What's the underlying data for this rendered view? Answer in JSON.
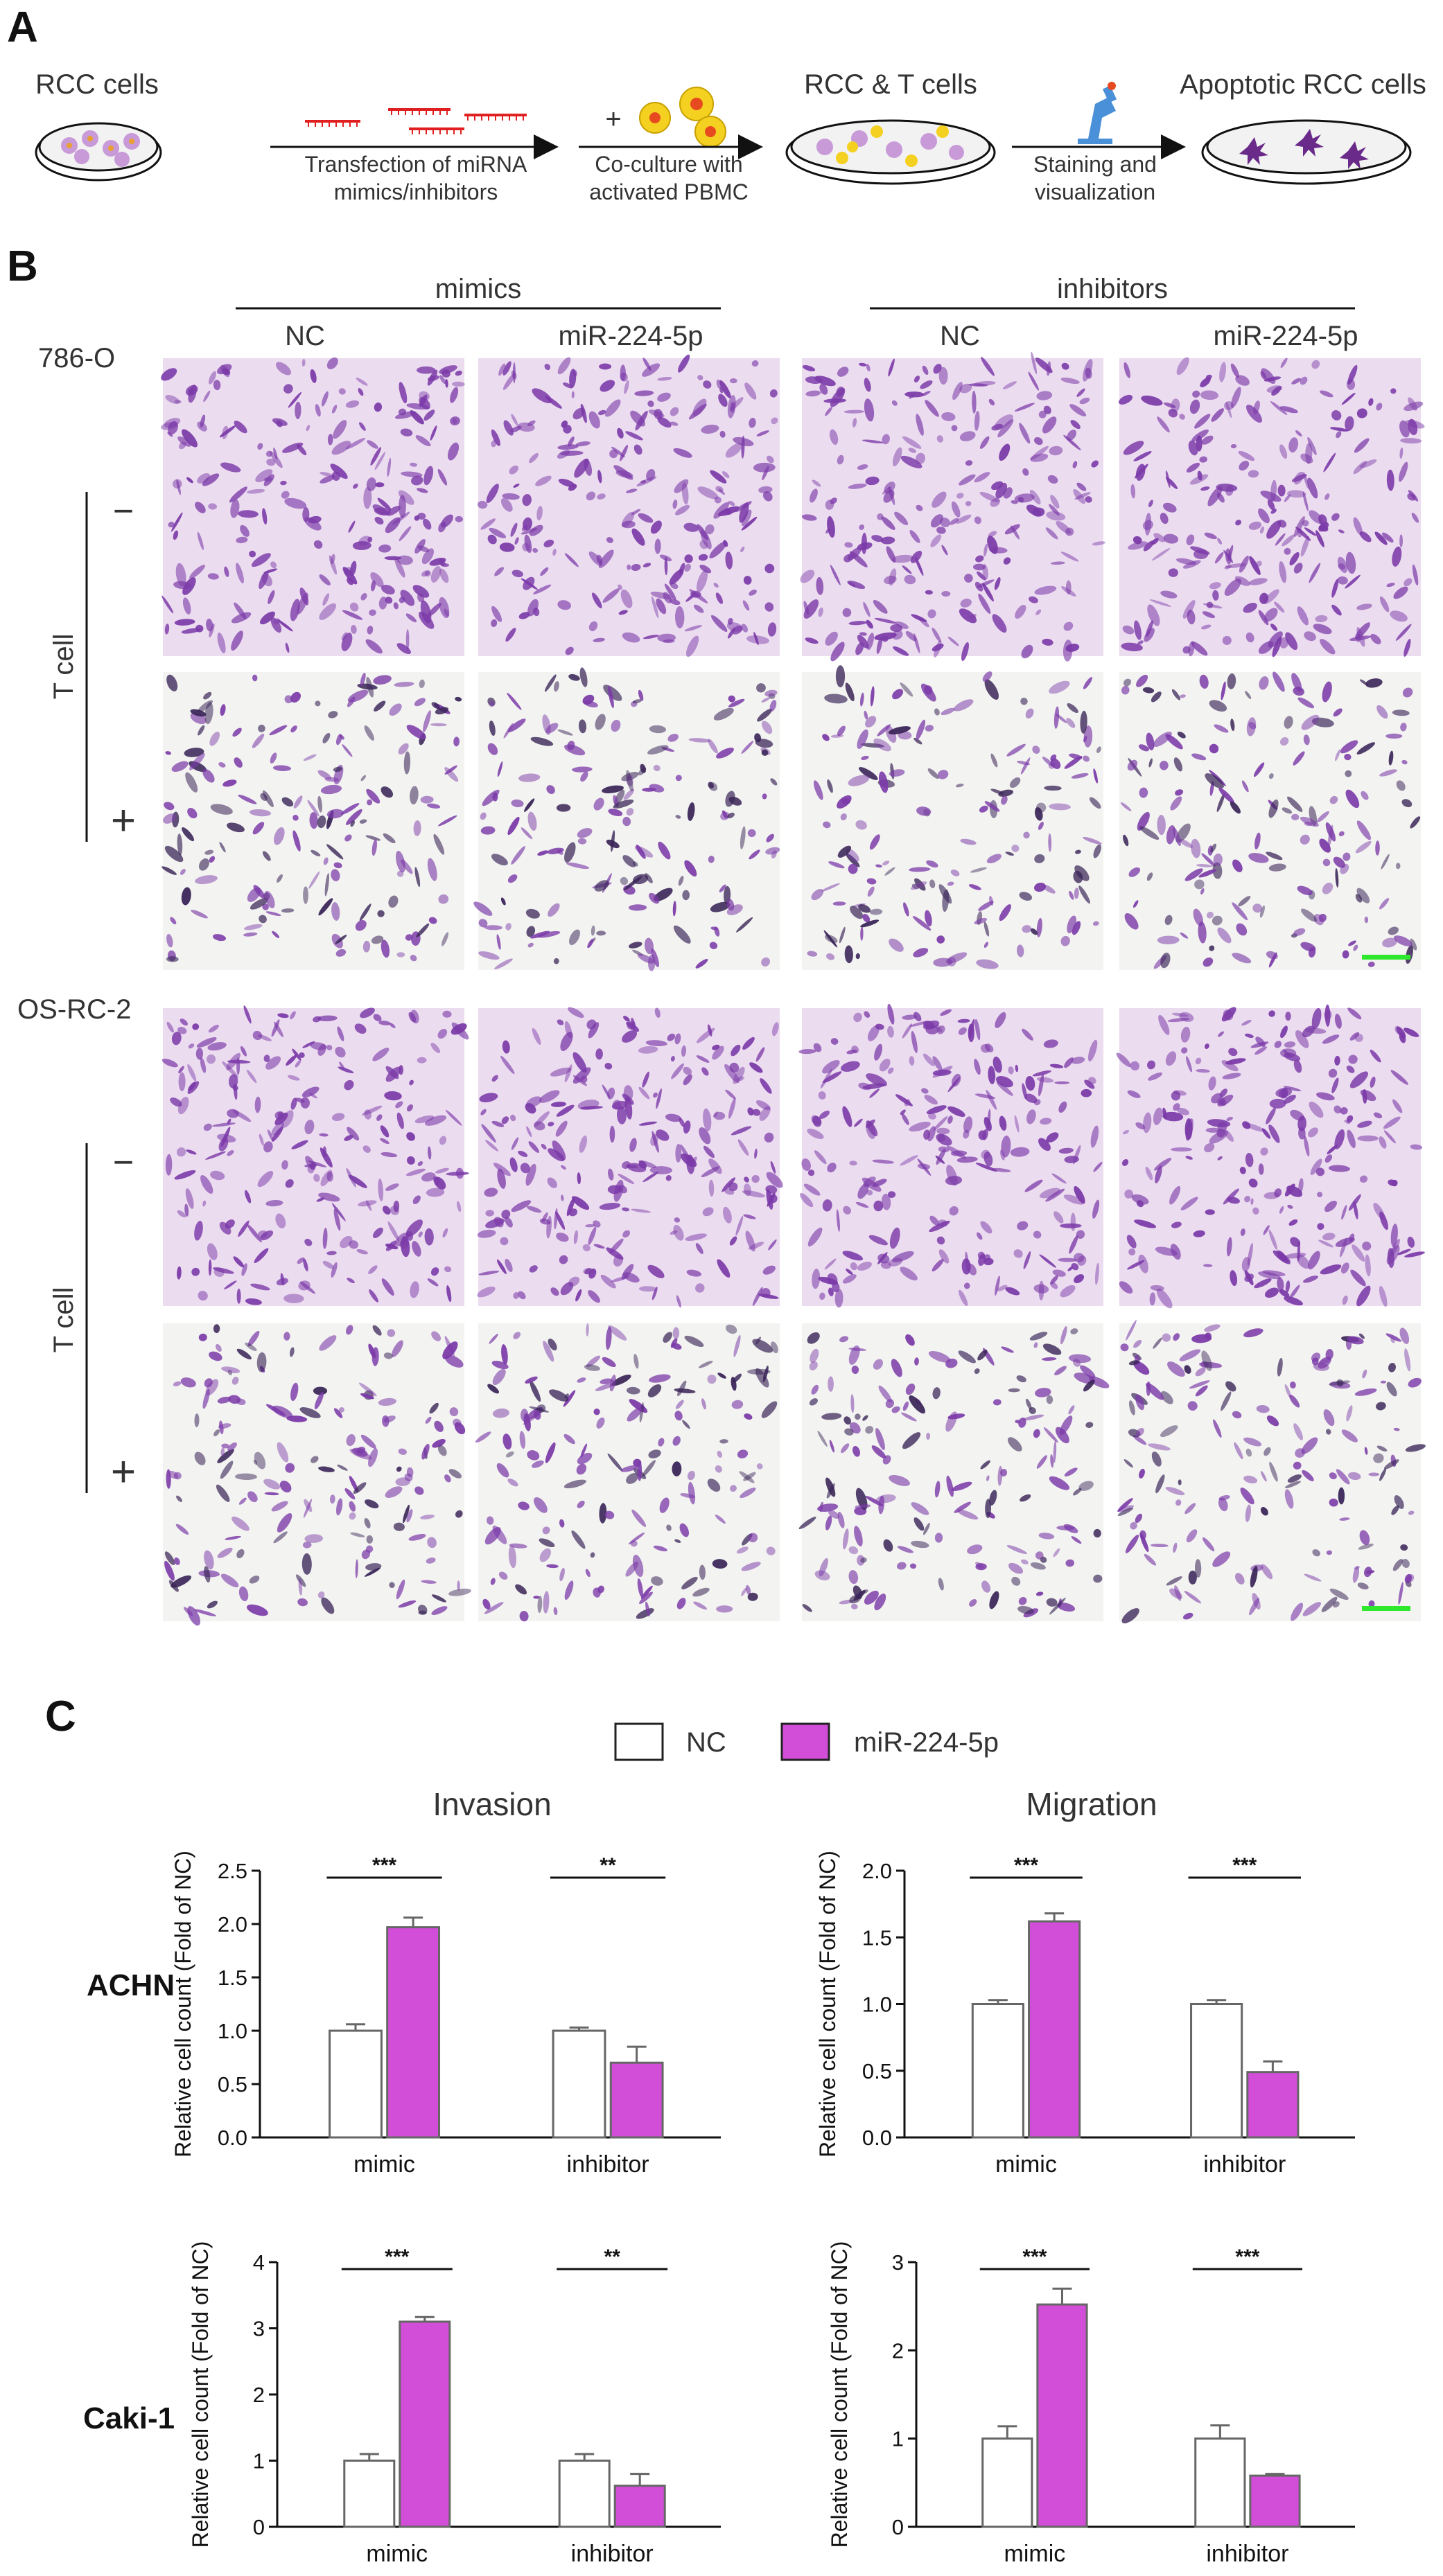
{
  "panels": {
    "a": "A",
    "b": "B",
    "c": "C"
  },
  "schematic": {
    "rcc_cells": "RCC cells",
    "step1_line1": "Transfection of miRNA",
    "step1_line2": "mimics/inhibitors",
    "plus": "+",
    "step2_line1": "Co-culture with",
    "step2_line2": "activated PBMC",
    "rcc_t_cells": "RCC & T cells",
    "step3_line1": "Staining and",
    "step3_line2": "visualization",
    "apoptotic": "Apoptotic RCC cells"
  },
  "micrographs": {
    "group_mimics": "mimics",
    "group_inhibitors": "inhibitors",
    "col_nc_1": "NC",
    "col_mir_1": "miR-224-5p",
    "col_nc_2": "NC",
    "col_mir_2": "miR-224-5p",
    "cell_line_1": "786-O",
    "cell_line_2": "OS-RC-2",
    "t_cell_label": "T cell",
    "minus": "−",
    "plus": "+",
    "stain_color": "#7b3aa8",
    "scale_bar_color": "#2ee82e"
  },
  "legend": {
    "nc": "NC",
    "mir": "miR-224-5p",
    "nc_color": "#ffffff",
    "mir_color": "#d24ed8"
  },
  "column_titles": {
    "invasion": "Invasion",
    "migration": "Migration"
  },
  "row_titles": {
    "achn": "ACHN",
    "caki": "Caki-1"
  },
  "chart_data": [
    {
      "type": "bar",
      "cell_line": "ACHN",
      "assay": "Invasion",
      "categories": [
        "mimic",
        "inhibitor"
      ],
      "series": [
        {
          "name": "NC",
          "values": [
            1.0,
            1.0
          ],
          "errors": [
            0.06,
            0.03
          ]
        },
        {
          "name": "miR-224-5p",
          "values": [
            1.97,
            0.7
          ],
          "errors": [
            0.09,
            0.15
          ]
        }
      ],
      "ylabel": "Relative cell count (Fold of NC)",
      "ylim": [
        0,
        2.5
      ],
      "yticks": [
        "0.0",
        "0.5",
        "1.0",
        "1.5",
        "2.0",
        "2.5"
      ],
      "significance": [
        "***",
        "**"
      ]
    },
    {
      "type": "bar",
      "cell_line": "ACHN",
      "assay": "Migration",
      "categories": [
        "mimic",
        "inhibitor"
      ],
      "series": [
        {
          "name": "NC",
          "values": [
            1.0,
            1.0
          ],
          "errors": [
            0.03,
            0.03
          ]
        },
        {
          "name": "miR-224-5p",
          "values": [
            1.62,
            0.49
          ],
          "errors": [
            0.06,
            0.08
          ]
        }
      ],
      "ylabel": "Relative cell count (Fold of NC)",
      "ylim": [
        0,
        2.0
      ],
      "yticks": [
        "0.0",
        "0.5",
        "1.0",
        "1.5",
        "2.0"
      ],
      "significance": [
        "***",
        "***"
      ]
    },
    {
      "type": "bar",
      "cell_line": "Caki-1",
      "assay": "Invasion",
      "categories": [
        "mimic",
        "inhibitor"
      ],
      "series": [
        {
          "name": "NC",
          "values": [
            1.0,
            1.0
          ],
          "errors": [
            0.1,
            0.1
          ]
        },
        {
          "name": "miR-224-5p",
          "values": [
            3.1,
            0.62
          ],
          "errors": [
            0.07,
            0.18
          ]
        }
      ],
      "ylabel": "Relative cell count (Fold of NC)",
      "ylim": [
        0,
        4
      ],
      "yticks": [
        "0",
        "1",
        "2",
        "3",
        "4"
      ],
      "significance": [
        "***",
        "**"
      ]
    },
    {
      "type": "bar",
      "cell_line": "Caki-1",
      "assay": "Migration",
      "categories": [
        "mimic",
        "inhibitor"
      ],
      "series": [
        {
          "name": "NC",
          "values": [
            1.0,
            1.0
          ],
          "errors": [
            0.14,
            0.15
          ]
        },
        {
          "name": "miR-224-5p",
          "values": [
            2.52,
            0.58
          ],
          "errors": [
            0.18,
            0.02
          ]
        }
      ],
      "ylabel": "Relative cell count (Fold of NC)",
      "ylim": [
        0,
        3
      ],
      "yticks": [
        "0",
        "1",
        "2",
        "3"
      ],
      "significance": [
        "***",
        "***"
      ]
    }
  ]
}
